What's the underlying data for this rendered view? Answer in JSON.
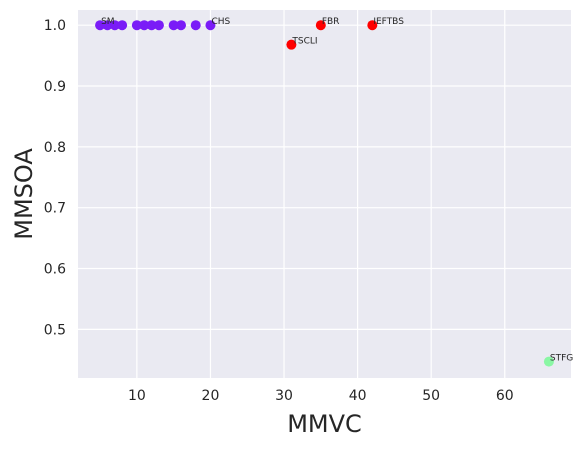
{
  "chart_data": {
    "type": "scatter",
    "title": "",
    "xlabel": "MMVC",
    "ylabel": "MMSOA",
    "xlim": [
      2.0,
      69.0
    ],
    "ylim": [
      0.42,
      1.025
    ],
    "xticks": [
      10,
      20,
      30,
      40,
      50,
      60
    ],
    "yticks": [
      0.5,
      0.6,
      0.7,
      0.8,
      0.9,
      1.0
    ],
    "xtick_labels": [
      "10",
      "20",
      "30",
      "40",
      "50",
      "60"
    ],
    "ytick_labels": [
      "0.5",
      "0.6",
      "0.7",
      "0.8",
      "0.9",
      "1.0"
    ],
    "grid": true,
    "background_color": "#eaeaf2",
    "grid_color": "#ffffff",
    "points": [
      {
        "x": 5,
        "y": 1.0,
        "label": "SM",
        "color": "#7a1cf7"
      },
      {
        "x": 6,
        "y": 1.0,
        "label": "",
        "color": "#7a1cf7"
      },
      {
        "x": 7,
        "y": 1.0,
        "label": "",
        "color": "#7a1cf7"
      },
      {
        "x": 8,
        "y": 1.0,
        "label": "",
        "color": "#7a1cf7"
      },
      {
        "x": 10,
        "y": 1.0,
        "label": "",
        "color": "#7a1cf7"
      },
      {
        "x": 11,
        "y": 1.0,
        "label": "",
        "color": "#7a1cf7"
      },
      {
        "x": 12,
        "y": 1.0,
        "label": "",
        "color": "#7a1cf7"
      },
      {
        "x": 13,
        "y": 1.0,
        "label": "",
        "color": "#7a1cf7"
      },
      {
        "x": 15,
        "y": 1.0,
        "label": "",
        "color": "#7a1cf7"
      },
      {
        "x": 16,
        "y": 1.0,
        "label": "",
        "color": "#7a1cf7"
      },
      {
        "x": 18,
        "y": 1.0,
        "label": "",
        "color": "#7a1cf7"
      },
      {
        "x": 20,
        "y": 1.0,
        "label": "CHS",
        "color": "#7a1cf7"
      },
      {
        "x": 31,
        "y": 0.968,
        "label": "TSCLI",
        "color": "#ff0000"
      },
      {
        "x": 35,
        "y": 1.0,
        "label": "FBR",
        "color": "#ff0000"
      },
      {
        "x": 42,
        "y": 1.0,
        "label": "IEFTBS",
        "color": "#ff0000"
      },
      {
        "x": 66,
        "y": 0.447,
        "label": "STFG",
        "color": "#8af7a4"
      }
    ]
  }
}
